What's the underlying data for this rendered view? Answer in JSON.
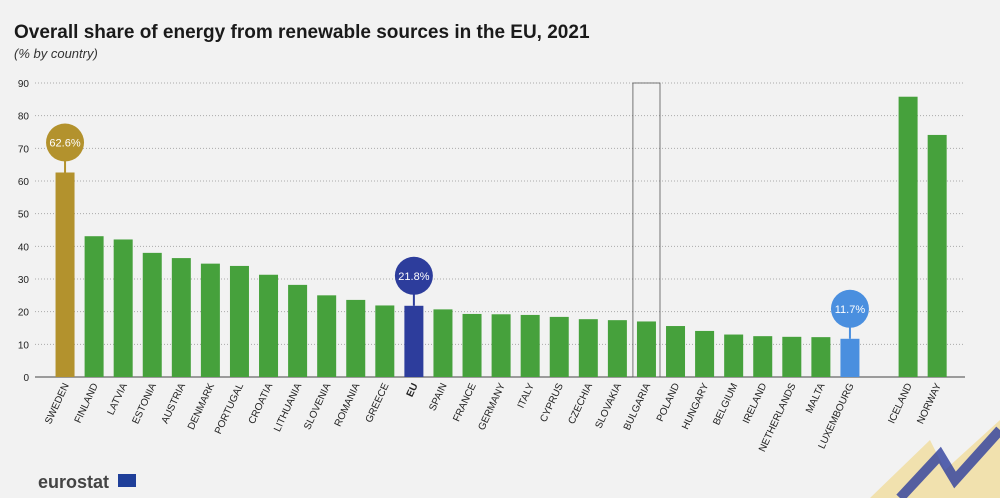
{
  "chart_data": {
    "type": "bar",
    "title": "Overall share of energy from renewable sources in the EU, 2021",
    "subtitle": "(% by country)",
    "categories": [
      "SWEDEN",
      "FINLAND",
      "LATVIA",
      "ESTONIA",
      "AUSTRIA",
      "DENMARK",
      "PORTUGAL",
      "CROATIA",
      "LITHUANIA",
      "SLOVENIA",
      "ROMANIA",
      "GREECE",
      "EU",
      "SPAIN",
      "FRANCE",
      "GERMANY",
      "ITALY",
      "CYPRUS",
      "CZECHIA",
      "SLOVAKIA",
      "BULGARIA",
      "POLAND",
      "HUNGARY",
      "BELGIUM",
      "IRELAND",
      "NETHERLANDS",
      "MALTA",
      "LUXEMBOURG",
      null,
      "ICELAND",
      "NORWAY"
    ],
    "values": [
      62.6,
      43.1,
      42.1,
      38.0,
      36.4,
      34.7,
      34.0,
      31.3,
      28.2,
      25.0,
      23.6,
      21.9,
      21.8,
      20.7,
      19.3,
      19.2,
      19.0,
      18.4,
      17.7,
      17.4,
      17.0,
      15.6,
      14.1,
      13.0,
      12.5,
      12.3,
      12.2,
      11.7,
      null,
      85.8,
      74.1
    ],
    "value_labels": [
      "62.6%",
      null,
      null,
      null,
      null,
      null,
      null,
      null,
      null,
      null,
      null,
      null,
      "21.8%",
      null,
      null,
      null,
      null,
      null,
      null,
      null,
      null,
      null,
      null,
      null,
      null,
      null,
      null,
      "11.7%",
      null,
      null,
      null
    ],
    "colors": [
      "#b3922d",
      "#46a13c",
      "#46a13c",
      "#46a13c",
      "#46a13c",
      "#46a13c",
      "#46a13c",
      "#46a13c",
      "#46a13c",
      "#46a13c",
      "#46a13c",
      "#46a13c",
      "#2d3d9c",
      "#46a13c",
      "#46a13c",
      "#46a13c",
      "#46a13c",
      "#46a13c",
      "#46a13c",
      "#46a13c",
      "#46a13c",
      "#46a13c",
      "#46a13c",
      "#46a13c",
      "#46a13c",
      "#46a13c",
      "#46a13c",
      "#4a8fdf",
      null,
      "#46a13c",
      "#46a13c"
    ],
    "ylim": [
      0,
      90
    ],
    "yticks": [
      0,
      10,
      20,
      30,
      40,
      50,
      60,
      70,
      80,
      90
    ],
    "grid": true
  },
  "logo": "eurostat"
}
